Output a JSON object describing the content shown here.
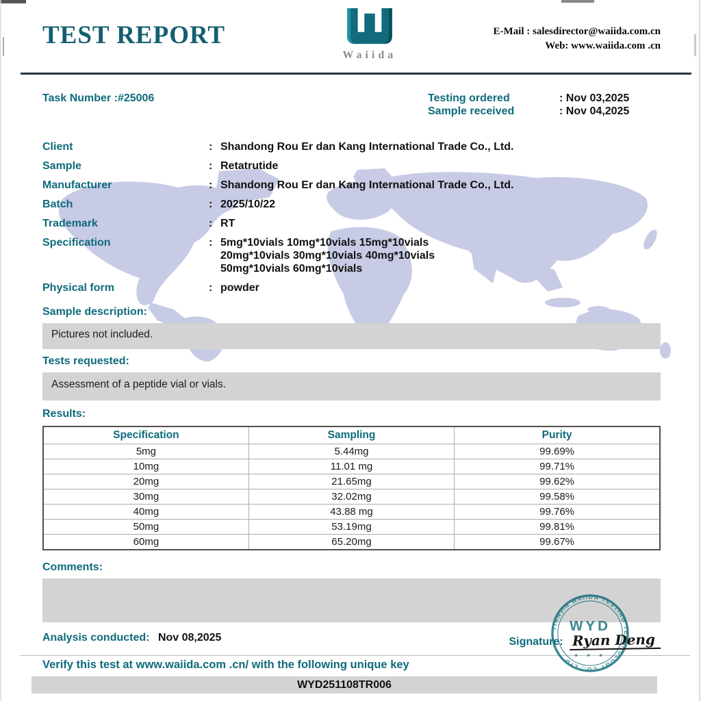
{
  "punct": {
    "colon": ":"
  },
  "header": {
    "title": "TEST REPORT",
    "brand": "Waiida",
    "logo_icon": "waiida-w-logo",
    "watermark": "world-map",
    "contact": {
      "email_label": "E-Mail :",
      "email": "salesdirector@waiida.com.cn",
      "web_label": "Web:",
      "web": "www.waiida.com .cn"
    }
  },
  "meta": {
    "task_number_label": "Task Number :",
    "task_number": "#25006",
    "testing_ordered_label": "Testing ordered",
    "testing_ordered_value": ": Nov 03,2025",
    "sample_received_label": "Sample received",
    "sample_received_value": ": Nov 04,2025"
  },
  "info": {
    "rows": [
      {
        "label": "Client",
        "value": "Shandong Rou Er dan Kang International Trade Co., Ltd."
      },
      {
        "label": "Sample",
        "value": "Retatrutide"
      },
      {
        "label": "Manufacturer",
        "value": "Shandong Rou Er dan Kang International Trade Co., Ltd."
      },
      {
        "label": "Batch",
        "value": "2025/10/22"
      },
      {
        "label": "Trademark",
        "value": "RT"
      },
      {
        "label": "Specification",
        "value": "5mg*10vials 10mg*10vials 15mg*10vials\n20mg*10vials 30mg*10vials 40mg*10vials\n50mg*10vials 60mg*10vials"
      },
      {
        "label": "Physical form",
        "value": "powder"
      }
    ]
  },
  "sections": {
    "sample_description_label": "Sample description:",
    "sample_description": "Pictures not included.",
    "tests_requested_label": "Tests requested:",
    "tests_requested": "Assessment of a peptide vial or vials.",
    "results_label": "Results:",
    "comments_label": "Comments:",
    "comments": ""
  },
  "results_table": {
    "headers": [
      "Specification",
      "Sampling",
      "Purity"
    ],
    "rows": [
      [
        "5mg",
        "5.44mg",
        "99.69%"
      ],
      [
        "10mg",
        "11.01 mg",
        "99.71%"
      ],
      [
        "20mg",
        "21.65mg",
        "99.62%"
      ],
      [
        "30mg",
        "32.02mg",
        "99.58%"
      ],
      [
        "40mg",
        "43.88 mg",
        "99.76%"
      ],
      [
        "50mg",
        "53.19mg",
        "99.81%"
      ],
      [
        "60mg",
        "65.20mg",
        "99.67%"
      ]
    ]
  },
  "footer": {
    "analysis_label": "Analysis conducted:",
    "analysis_date": "Nov 08,2025",
    "signature_label": "Signature:",
    "signature_name": "Ryan Deng",
    "stamp": {
      "center": "WYD",
      "ring_text": "TIANJIN WAIIDA TESTING TECHNOLOGY CO., LTD",
      "stars": "★ ★ ★"
    },
    "verify_text": "Verify this test at  www.waiida.com .cn/ with the following unique key",
    "unique_key": "WYD251108TR006"
  },
  "colors": {
    "teal_accent": "#0e6b7b",
    "title_teal": "#135f70",
    "rule_dark": "#223646",
    "box_gray": "#d3d3d3",
    "map_lavender": "#c8cbe5",
    "stamp_teal": "#19707f"
  }
}
